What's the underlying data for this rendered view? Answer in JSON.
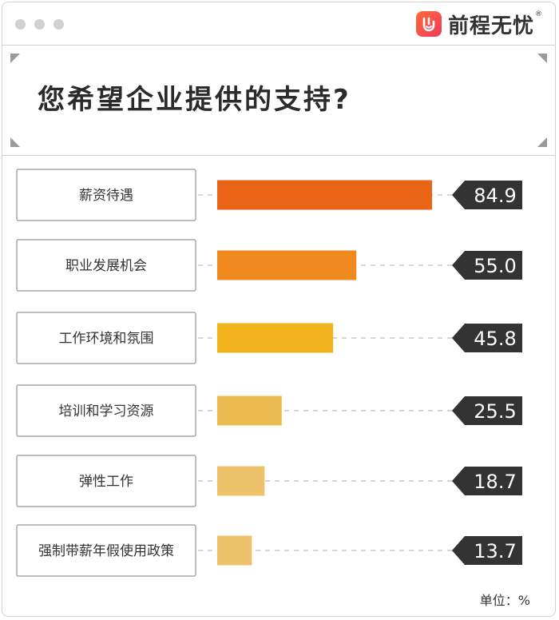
{
  "brand": {
    "name": "前程无忧",
    "reg": "®"
  },
  "title": "您希望企业提供的支持?",
  "unit_label": "单位：%",
  "colors": {
    "frame": "#d2d2d2",
    "label_box": "#a8a8a8",
    "value_box": "#333333",
    "dash": "#c8c8c8",
    "bars": [
      "#ea6416",
      "#f08a1e",
      "#f2b21e",
      "#ecbc50",
      "#edc26a",
      "#edc26a"
    ]
  },
  "chart_data": {
    "type": "bar",
    "orientation": "horizontal",
    "categories": [
      "薪资待遇",
      "职业发展机会",
      "工作环境和氛围",
      "培训和学习资源",
      "弹性工作",
      "强制带薪年假使用政策"
    ],
    "values": [
      84.9,
      55.0,
      45.8,
      25.5,
      18.7,
      13.7
    ],
    "value_labels": [
      "84.9",
      "55.0",
      "45.8",
      "25.5",
      "18.7",
      "13.7"
    ],
    "title": "您希望企业提供的支持?",
    "unit": "单位：%",
    "xlim": [
      0,
      100
    ],
    "grid": false,
    "legend": "none"
  }
}
